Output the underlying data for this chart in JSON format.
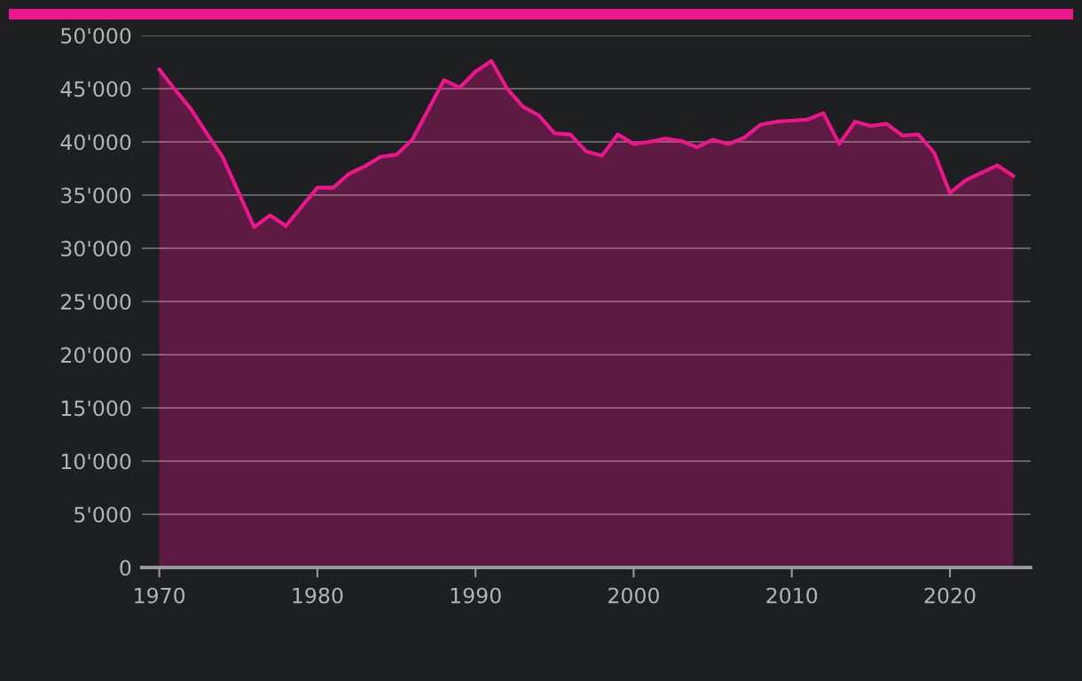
{
  "chart_data": {
    "type": "area",
    "x": [
      1970,
      1971,
      1972,
      1973,
      1974,
      1975,
      1976,
      1977,
      1978,
      1979,
      1980,
      1981,
      1982,
      1983,
      1984,
      1985,
      1986,
      1987,
      1988,
      1989,
      1990,
      1991,
      1992,
      1993,
      1994,
      1995,
      1996,
      1997,
      1998,
      1999,
      2000,
      2001,
      2002,
      2003,
      2004,
      2005,
      2006,
      2007,
      2008,
      2009,
      2010,
      2011,
      2012,
      2013,
      2014,
      2015,
      2016,
      2017,
      2018,
      2019,
      2020,
      2021,
      2022,
      2023,
      2024
    ],
    "series": [
      {
        "color": "#f0148c",
        "values": [
          46800,
          44900,
          43100,
          40800,
          38600,
          35300,
          32000,
          33100,
          32100,
          33900,
          35700,
          35700,
          37000,
          37700,
          38600,
          38800,
          40200,
          43000,
          45800,
          45100,
          46600,
          47600,
          45000,
          43300,
          42500,
          40800,
          40700,
          39100,
          38700,
          40700,
          39800,
          40000,
          40300,
          40100,
          39500,
          40200,
          39800,
          40400,
          41600,
          41900,
          42000,
          42100,
          42700,
          39800,
          41900,
          41500,
          41700,
          40600,
          40700,
          39000,
          35200,
          36400,
          37100,
          37800,
          36800
        ]
      }
    ],
    "xlim": [
      1968.9,
      2025.1
    ],
    "xticks": [
      1970,
      1980,
      1990,
      2000,
      2010,
      2020
    ],
    "ylim": [
      0,
      50000
    ],
    "yticks": [
      {
        "value": 0,
        "label": "0"
      },
      {
        "value": 5000,
        "label": "5'000"
      },
      {
        "value": 10000,
        "label": "10'000"
      },
      {
        "value": 15000,
        "label": "15'000"
      },
      {
        "value": 20000,
        "label": "20'000"
      },
      {
        "value": 25000,
        "label": "25'000"
      },
      {
        "value": 30000,
        "label": "30'000"
      },
      {
        "value": 35000,
        "label": "35'000"
      },
      {
        "value": 40000,
        "label": "40'000"
      },
      {
        "value": 45000,
        "label": "45'000"
      },
      {
        "value": 50000,
        "label": "50'000"
      }
    ],
    "grid": "y",
    "legend": false,
    "marker": "none",
    "line_style": "solid"
  }
}
